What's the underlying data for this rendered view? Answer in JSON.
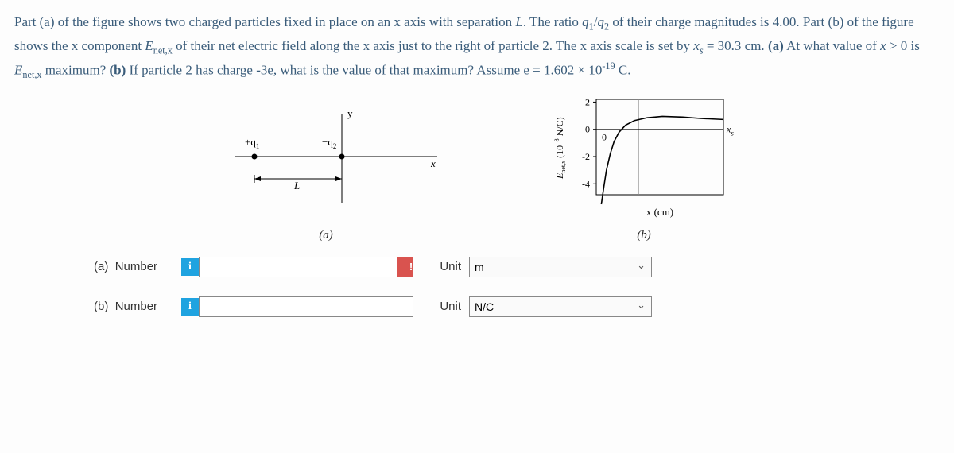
{
  "problem_html": "Part (a) of the figure shows two charged particles fixed in place on an x axis with separation <i>L</i>. The ratio <i>q</i><sub>1</sub>/<i>q</i><sub>2</sub> of their charge magnitudes is 4.00. Part (b) of the figure shows the x component <i>E</i><sub>net,x</sub> of their net electric field along the x axis just to the right of particle 2. The x axis scale is set by <i>x<sub>s</sub></i> = 30.3 cm. <b>(a)</b> At what value of <i>x</i> > 0 is <i>E</i><sub>net,x</sub> maximum? <b>(b)</b> If particle 2 has charge -3e, what is the value of that maximum? Assume e = 1.602 × 10<sup>-19</sup> C.",
  "figure_a": {
    "q1_label": "+q",
    "q1_sub": "1",
    "q2_label": "−q",
    "q2_sub": "2",
    "L_label": "L",
    "x_label": "x",
    "y_label": "y",
    "caption": "(a)",
    "colors": {
      "axis": "#000000",
      "dot": "#000000"
    }
  },
  "figure_b": {
    "ylabel_html": "E_{net,x} (10^{-8} N/C)",
    "xlabel": "x (cm)",
    "caption": "(b)",
    "y_ticks": [
      2,
      0,
      -2,
      -4
    ],
    "x_tick_labels": [
      "0",
      ""
    ],
    "xs_label": "x_s",
    "curve_points": [
      [
        0.04,
        -5.5
      ],
      [
        0.06,
        -4.2
      ],
      [
        0.08,
        -3.0
      ],
      [
        0.11,
        -1.8
      ],
      [
        0.14,
        -0.9
      ],
      [
        0.18,
        -0.2
      ],
      [
        0.23,
        0.3
      ],
      [
        0.3,
        0.64
      ],
      [
        0.4,
        0.85
      ],
      [
        0.52,
        0.95
      ],
      [
        0.68,
        0.9
      ],
      [
        0.82,
        0.8
      ],
      [
        1.0,
        0.72
      ]
    ],
    "ylim": [
      -4.8,
      2.2
    ],
    "colors": {
      "axis": "#000000",
      "curve": "#000000",
      "grid": "#808080"
    }
  },
  "answers": {
    "a": {
      "part": "(a)",
      "label": "Number",
      "value": "",
      "unit_label": "Unit",
      "unit_value": "m",
      "warn": true
    },
    "b": {
      "part": "(b)",
      "label": "Number",
      "value": "",
      "unit_label": "Unit",
      "unit_value": "N/C",
      "warn": false
    }
  },
  "icons": {
    "info": "i",
    "warn": "!"
  }
}
